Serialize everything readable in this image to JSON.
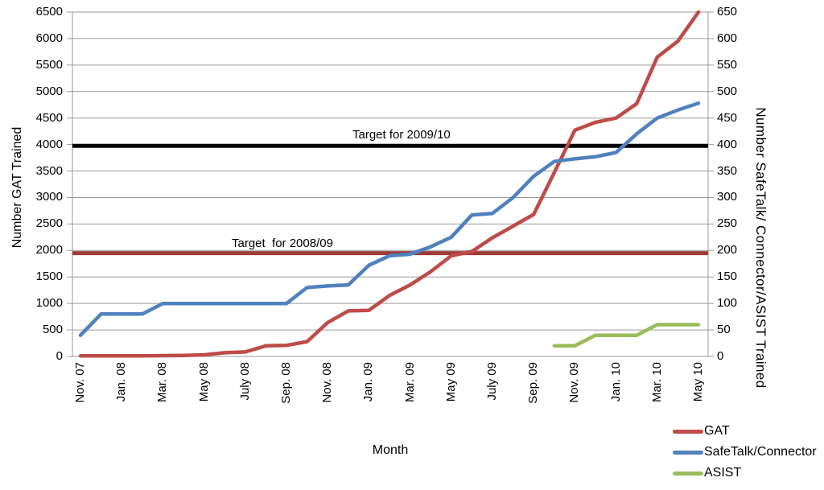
{
  "chart_data": {
    "type": "line",
    "title": "",
    "x_axis": {
      "label": "Month",
      "tick_labels": [
        "Nov. 07",
        "Jan. 08",
        "Mar. 08",
        "May 08",
        "July 08",
        "Sep. 08",
        "Nov. 08",
        "Jan. 09",
        "Mar. 09",
        "May 09",
        "July 09",
        "Sep. 09",
        "Nov. 09",
        "Jan. 10",
        "Mar. 10",
        "May 10"
      ]
    },
    "categories": [
      "Nov. 07",
      "Dec. 07",
      "Jan. 08",
      "Feb. 08",
      "Mar. 08",
      "Apr. 08",
      "May 08",
      "June 08",
      "July 08",
      "Aug. 08",
      "Sep. 08",
      "Oct. 08",
      "Nov. 08",
      "Dec. 08",
      "Jan. 09",
      "Feb. 09",
      "Mar. 09",
      "Apr. 09",
      "May 09",
      "June 09",
      "July 09",
      "Aug. 09",
      "Sep. 09",
      "Oct. 09",
      "Nov. 09",
      "Dec. 09",
      "Jan. 10",
      "Feb. 10",
      "Mar. 10",
      "Apr. 10",
      "May 10"
    ],
    "y_left": {
      "label": "Number GAT Trained",
      "min": 0,
      "max": 6500,
      "step": 500,
      "ticks": [
        "0",
        "500",
        "1000",
        "1500",
        "2000",
        "2500",
        "3000",
        "3500",
        "4000",
        "4500",
        "5000",
        "5500",
        "6000",
        "6500"
      ]
    },
    "y_right": {
      "label": "Number SafeTalk/ Connector/ASIST Trained",
      "min": 0,
      "max": 650,
      "step": 50,
      "ticks": [
        "0",
        "50",
        "100",
        "150",
        "200",
        "250",
        "300",
        "350",
        "400",
        "450",
        "500",
        "550",
        "600",
        "650"
      ]
    },
    "series": [
      {
        "id": "gat",
        "name": "GAT",
        "axis": "left",
        "color": "#be4b48",
        "values": [
          10,
          10,
          10,
          10,
          15,
          20,
          30,
          70,
          85,
          200,
          210,
          280,
          640,
          860,
          870,
          1150,
          1350,
          1600,
          1900,
          1980,
          2240,
          2460,
          2680,
          3470,
          4270,
          4420,
          4500,
          4770,
          5650,
          5950,
          6500
        ]
      },
      {
        "id": "safetalk",
        "name": "SafeTalk/Connector",
        "axis": "right",
        "color": "#4f81bd",
        "values": [
          40,
          80,
          80,
          80,
          100,
          100,
          100,
          100,
          100,
          100,
          100,
          130,
          133,
          135,
          172,
          190,
          193,
          207,
          225,
          267,
          270,
          300,
          340,
          368,
          373,
          377,
          385,
          420,
          450,
          465,
          478
        ]
      },
      {
        "id": "asist",
        "name": "ASIST",
        "axis": "right",
        "color": "#9bbb59",
        "values": [
          null,
          null,
          null,
          null,
          null,
          null,
          null,
          null,
          null,
          null,
          null,
          null,
          null,
          null,
          null,
          null,
          null,
          null,
          null,
          null,
          null,
          null,
          null,
          20,
          20,
          40,
          40,
          40,
          60,
          60,
          60
        ]
      }
    ],
    "target_lines": [
      {
        "id": "target-2009-10",
        "label": "Target for 2009/10",
        "value": 3975,
        "axis": "left",
        "color": "#000000"
      },
      {
        "id": "target-2008-09",
        "label": "Target  for 2008/09",
        "value": 1950,
        "axis": "left",
        "color": "#9e3b39"
      }
    ],
    "legend_position": "bottom-right",
    "grid": true,
    "colors": {
      "grid": "#9a9a9a",
      "axis": "#9a9a9a",
      "text": "#000000"
    }
  }
}
